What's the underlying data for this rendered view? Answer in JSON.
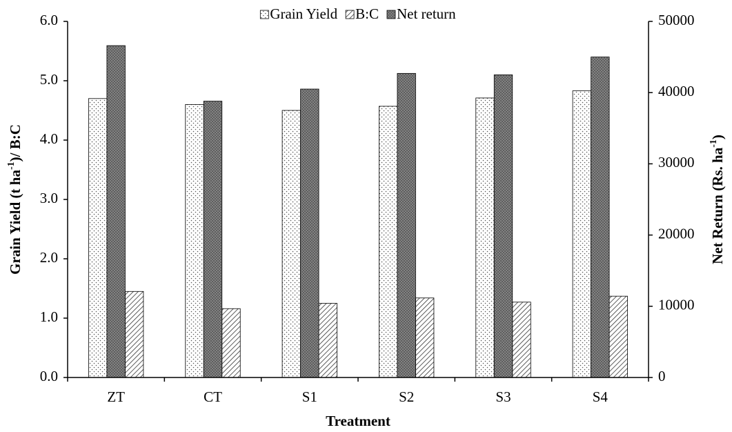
{
  "chart_data": {
    "type": "bar",
    "categories": [
      "ZT",
      "CT",
      "S1",
      "S2",
      "S3",
      "S4"
    ],
    "xlabel": "Treatment",
    "ylabel": [
      "Grain Yield (t ha",
      "-1",
      ")/ B:C"
    ],
    "y2label": [
      "Net Return (Rs. ha",
      "-1",
      ")"
    ],
    "series": [
      {
        "name": "Grain Yield",
        "color": "#ffffff",
        "pattern": "dots",
        "values": [
          4.7,
          4.6,
          4.5,
          4.57,
          4.71,
          4.83
        ]
      },
      {
        "name": "B:C",
        "color": "#ffffff",
        "pattern": "hatch",
        "values": [
          1.45,
          1.16,
          1.25,
          1.34,
          1.27,
          1.37
        ]
      },
      {
        "name": "Net return",
        "color": "#9a9a9a",
        "pattern": "crosshatch",
        "axis": "y2",
        "values": [
          46600,
          38800,
          40500,
          42700,
          42500,
          45000
        ]
      }
    ],
    "ylim": [
      0,
      6
    ],
    "yticks": [
      {
        "value": 0,
        "label": "0.0"
      },
      {
        "value": 1,
        "label": "1.0"
      },
      {
        "value": 2,
        "label": "2.0"
      },
      {
        "value": 3,
        "label": "3.0"
      },
      {
        "value": 4,
        "label": "4.0"
      },
      {
        "value": 5,
        "label": "5.0"
      },
      {
        "value": 6,
        "label": "6.0"
      }
    ],
    "y2lim": [
      0,
      50000
    ],
    "y2ticks": [
      0,
      10000,
      20000,
      30000,
      40000,
      50000
    ],
    "grid": false,
    "legend": "top"
  }
}
